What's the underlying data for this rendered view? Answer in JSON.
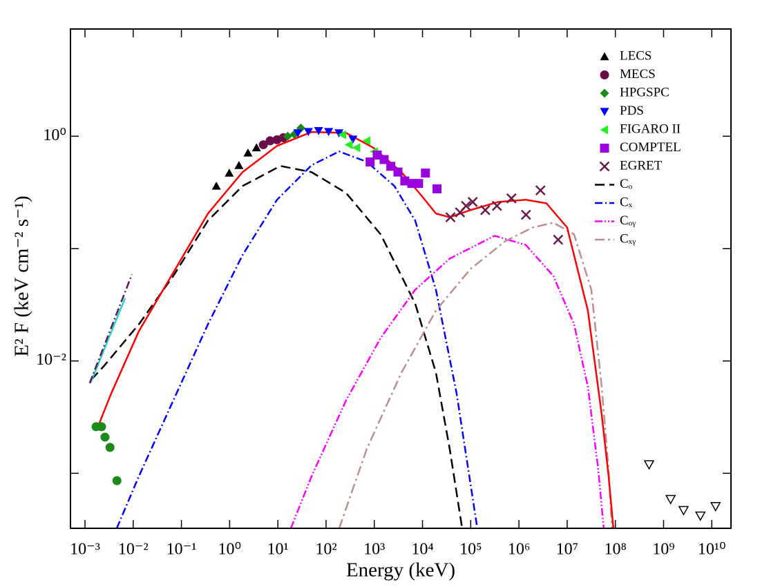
{
  "chart_data": {
    "type": "scatter",
    "xlabel": "Energy  (keV)",
    "ylabel": "E² F  (keV cm⁻² s⁻¹)",
    "xscale": "log",
    "yscale": "log",
    "xlim": [
      0.0005,
      25000000000
    ],
    "ylim": [
      0.000324,
      9
    ],
    "xticks": [
      {
        "value": 0.001,
        "label": "10⁻³"
      },
      {
        "value": 0.01,
        "label": "10⁻²"
      },
      {
        "value": 0.1,
        "label": "10⁻¹"
      },
      {
        "value": 1,
        "label": "10⁰"
      },
      {
        "value": 10,
        "label": "10¹"
      },
      {
        "value": 100,
        "label": "10²"
      },
      {
        "value": 1000,
        "label": "10³"
      },
      {
        "value": 10000,
        "label": "10⁴"
      },
      {
        "value": 100000,
        "label": "10⁵"
      },
      {
        "value": 1000000,
        "label": "10⁶"
      },
      {
        "value": 10000000,
        "label": "10⁷"
      },
      {
        "value": 100000000,
        "label": "10⁸"
      },
      {
        "value": 1000000000,
        "label": "10⁹"
      },
      {
        "value": 10000000000,
        "label": "10¹⁰"
      }
    ],
    "yticks": [
      {
        "value": 0.01,
        "label": "10⁻²"
      },
      {
        "value": 1,
        "label": "10⁰"
      }
    ],
    "yminorticks": [
      0.001,
      0.1
    ],
    "legend": "upper right",
    "series": [
      {
        "name": "LECS",
        "color": "#000000",
        "marker": "triangle-up",
        "x": [
          0.53,
          0.98,
          1.56,
          2.4,
          3.6
        ],
        "values": [
          0.36,
          0.47,
          0.55,
          0.71,
          0.79
        ]
      },
      {
        "name": "MECS",
        "color": "#6a0e4a",
        "marker": "circle",
        "x": [
          5.0,
          6.9,
          9.6,
          13
        ],
        "values": [
          0.84,
          0.91,
          0.93,
          0.97
        ]
      },
      {
        "name": "HPGSPC",
        "color": "#1a8a1a",
        "marker": "diamond",
        "x": [
          16,
          22,
          30
        ],
        "values": [
          1.0,
          1.04,
          1.18
        ]
      },
      {
        "name": "PDS",
        "color": "#0000ff",
        "marker": "triangle-down",
        "x": [
          26,
          43,
          70,
          113,
          185,
          360
        ],
        "values": [
          1.07,
          1.1,
          1.12,
          1.1,
          1.07,
          0.94
        ]
      },
      {
        "name": "FIGARO II",
        "color": "#22ee22",
        "marker": "triangle-left",
        "x": [
          220,
          300,
          430,
          700,
          1000
        ],
        "values": [
          1.03,
          0.84,
          0.79,
          0.91,
          0.73
        ]
      },
      {
        "name": "COMPTEL",
        "color": "#9900dd",
        "marker": "square",
        "x": [
          820,
          1150,
          1600,
          2200,
          3100,
          4300,
          6000,
          8300,
          11500,
          20000
        ],
        "values": [
          0.59,
          0.68,
          0.62,
          0.54,
          0.48,
          0.4,
          0.38,
          0.38,
          0.47,
          0.34
        ]
      },
      {
        "name": "EGRET",
        "color": "#6a1a4a",
        "marker": "x",
        "x": [
          38000,
          60000,
          80000,
          110000,
          200000,
          350000,
          700000,
          1400000,
          2800000,
          6500000
        ],
        "values": [
          0.19,
          0.21,
          0.24,
          0.26,
          0.22,
          0.24,
          0.28,
          0.2,
          0.33,
          0.12
        ]
      },
      {
        "name": "Cₒ",
        "color": "#000000",
        "line": "dashed",
        "x": [
          0.00135,
          0.0025,
          0.0131,
          0.068,
          0.355,
          1.85,
          11.3,
          50,
          260,
          1355,
          7050,
          19000,
          36650,
          66400
        ],
        "values": [
          0.0068,
          0.00906,
          0.0212,
          0.0571,
          0.1775,
          0.36,
          0.544,
          0.479,
          0.313,
          0.134,
          0.0324,
          0.00786,
          0.00165,
          0.000324
        ]
      },
      {
        "name": "Cₓ",
        "color": "#0000ff",
        "line": "dash-dot",
        "x": [
          0.00456,
          0.0131,
          0.068,
          0.355,
          1.85,
          9.6,
          50,
          187,
          700,
          2620,
          7050,
          19000,
          51000,
          137000
        ],
        "values": [
          0.000324,
          0.00094,
          0.00446,
          0.0212,
          0.0874,
          0.272,
          0.552,
          0.732,
          0.592,
          0.36,
          0.1775,
          0.043,
          0.00514,
          0.000324
        ]
      },
      {
        "name": "Cₒᵧ",
        "color": "#ff00ff",
        "line": "dash-dot-dot",
        "x": [
          18.6,
          50,
          260,
          1355,
          7050,
          36650,
          313000,
          1380000,
          5170000,
          13900000,
          26900000,
          44200000,
          57400000
        ],
        "values": [
          0.000324,
          0.00094,
          0.00446,
          0.016,
          0.043,
          0.0814,
          0.13,
          0.108,
          0.0571,
          0.0212,
          0.00592,
          0.00108,
          0.000324
        ]
      },
      {
        "name": "Cₓᵧ",
        "color": "#bc8f8f",
        "line": "long-dash-dot",
        "x": [
          187,
          700,
          3650,
          19000,
          98600,
          514000,
          1920000,
          5170000,
          13900000,
          31700000,
          52000000,
          72400000,
          85000000
        ],
        "values": [
          0.000324,
          0.00165,
          0.00786,
          0.0281,
          0.0658,
          0.116,
          0.154,
          0.17,
          0.134,
          0.043,
          0.00592,
          0.00108,
          0.000324
        ]
      },
      {
        "color": "#ff0000",
        "line": "solid",
        "x": [
          0.00181,
          0.0035,
          0.0131,
          0.068,
          0.355,
          1.85,
          9.6,
          50,
          260,
          975,
          3650,
          9800,
          19000,
          36650,
          98600,
          369000,
          1380000,
          3720000,
          10000000,
          26900000,
          52000000,
          72400000,
          91000000
        ],
        "values": [
          0.00253,
          0.00514,
          0.0184,
          0.0613,
          0.205,
          0.479,
          0.82,
          1.09,
          1.07,
          0.786,
          0.479,
          0.292,
          0.205,
          0.19,
          0.22,
          0.26,
          0.272,
          0.253,
          0.154,
          0.0281,
          0.00336,
          0.00094,
          0.000324
        ]
      },
      {
        "color": "#2ad4c8",
        "line": "solid",
        "x": [
          0.0013,
          0.0068
        ],
        "values": [
          0.00635,
          0.0363
        ]
      },
      {
        "color": "#5a1a5a",
        "line": "dash-dot",
        "x": [
          0.00125,
          0.0094
        ],
        "values": [
          0.00635,
          0.0588
        ]
      },
      {
        "color": "#1a8a1a",
        "marker": "circle",
        "x": [
          0.0017,
          0.0022,
          0.0026,
          0.0033,
          0.0046
        ],
        "values": [
          0.0026,
          0.0026,
          0.0021,
          0.0017,
          0.00086
        ]
      },
      {
        "color": "#000000",
        "marker": "triangle-down-open",
        "x": [
          500000000,
          1400000000,
          2600000000,
          5800000000,
          12000000000
        ],
        "values": [
          0.0012,
          0.00059,
          0.00047,
          0.00042,
          0.00051
        ]
      }
    ]
  }
}
